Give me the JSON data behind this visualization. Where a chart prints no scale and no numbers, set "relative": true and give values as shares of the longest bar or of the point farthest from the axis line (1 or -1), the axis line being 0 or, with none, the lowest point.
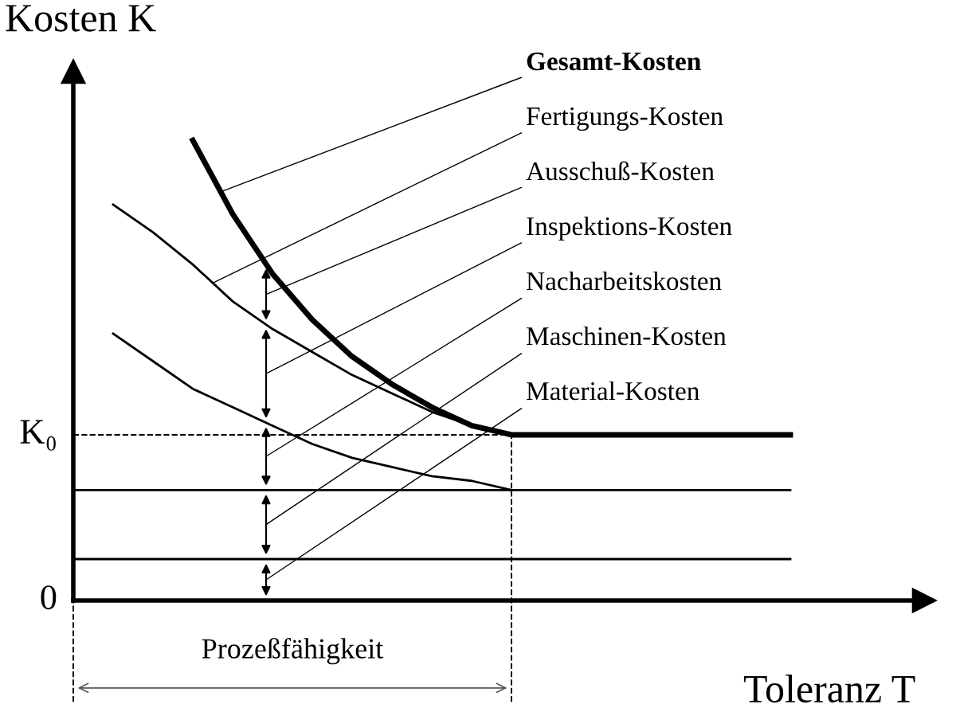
{
  "chart_data": {
    "type": "line",
    "relative": true,
    "xlabel": "Toleranz T",
    "ylabel": "Kosten K",
    "categories": [
      null,
      null,
      null,
      null,
      null,
      null,
      null,
      null,
      null,
      null,
      null,
      null,
      null,
      null,
      null,
      null,
      null,
      null,
      null
    ],
    "series": [
      {
        "color": "#000000",
        "values": [
          null,
          null,
          null,
          1,
          0.84,
          0.71,
          0.61,
          0.53,
          0.47,
          0.42,
          0.38,
          0.36,
          0.36,
          0.36,
          0.36,
          0.36,
          0.36,
          0.36,
          0.36
        ]
      },
      {
        "color": "#000000",
        "values": [
          null,
          0.86,
          0.8,
          0.73,
          0.65,
          0.59,
          0.54,
          0.49,
          0.45,
          0.41,
          0.38,
          0.36,
          null,
          null,
          null,
          null,
          null,
          null,
          null
        ]
      },
      {
        "color": "#000000",
        "values": [
          null,
          0.58,
          0.52,
          0.46,
          0.42,
          0.38,
          0.34,
          0.31,
          0.29,
          0.27,
          0.26,
          0.24,
          null,
          null,
          null,
          null,
          null,
          null,
          null
        ]
      },
      {
        "color": "#000000",
        "values": [
          0.24,
          0.24,
          0.24,
          0.24,
          0.24,
          0.24,
          0.24,
          0.24,
          0.24,
          0.24,
          0.24,
          0.24,
          0.24,
          0.24,
          0.24,
          0.24,
          0.24,
          0.24,
          0.24
        ]
      },
      {
        "color": "#000000",
        "values": [
          0.09,
          0.09,
          0.09,
          0.09,
          0.09,
          0.09,
          0.09,
          0.09,
          0.09,
          0.09,
          0.09,
          0.09,
          0.09,
          0.09,
          0.09,
          0.09,
          0.09,
          0.09,
          0.09
        ]
      }
    ],
    "ref_lines": [
      {
        "axis": "y",
        "value": 0.36,
        "label": "K₀",
        "line_style": "dashed",
        "color": "#000000"
      }
    ],
    "annotations": [
      "Gesamt-Kosten",
      "Fertigungs-Kosten",
      "Ausschuß-Kosten",
      "Inspektions-Kosten",
      "Nacharbeitskosten",
      "Maschinen-Kosten",
      "Material-Kosten",
      "Prozeßfähigkeit",
      "0"
    ],
    "legend": false,
    "grid": false,
    "marker": "none",
    "line_style": "solid"
  }
}
